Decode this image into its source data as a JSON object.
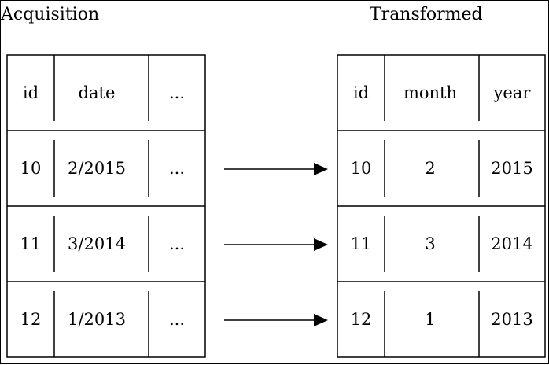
{
  "left_table": {
    "title": "Acquisition",
    "headers": [
      "id",
      "date",
      "..."
    ],
    "rows": [
      [
        "10",
        "2/2015",
        "..."
      ],
      [
        "11",
        "3/2014",
        "..."
      ],
      [
        "12",
        "1/2013",
        "..."
      ]
    ]
  },
  "right_table": {
    "title": "Transformed",
    "headers": [
      "id",
      "month",
      "year"
    ],
    "rows": [
      [
        "10",
        "2",
        "2015"
      ],
      [
        "11",
        "3",
        "2014"
      ],
      [
        "12",
        "1",
        "2013"
      ]
    ]
  },
  "colors": {
    "line": "#000000",
    "background": "#ffffff",
    "text": "#000000"
  }
}
